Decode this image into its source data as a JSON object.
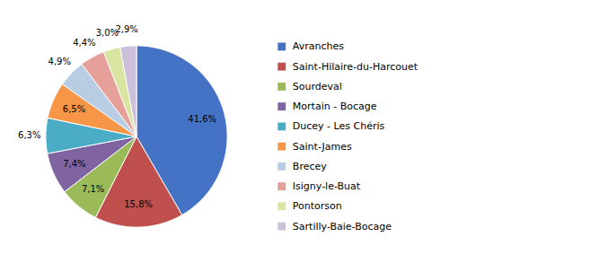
{
  "chart_data": {
    "type": "pie",
    "categories": [
      "Avranches",
      "Saint-Hilaire-du-Harcouet",
      "Sourdeval",
      "Mortain - Bocage",
      "Ducey - Les Chéris",
      "Saint-James",
      "Brecey",
      "Isigny-le-Buat",
      "Pontorson",
      "Sartilly-Baie-Bocage"
    ],
    "values": [
      41.6,
      15.8,
      7.1,
      7.4,
      6.3,
      6.5,
      4.9,
      4.4,
      3.0,
      2.9
    ],
    "value_labels": [
      "41,6%",
      "15,8%",
      "7,1%",
      "7,4%",
      "6,3%",
      "6,5%",
      "4,9%",
      "4,4%",
      "3,0%",
      "2,9%"
    ],
    "colors": [
      "#4472C4",
      "#C0504D",
      "#9BBB59",
      "#8064A2",
      "#4BACC6",
      "#F79646",
      "#B8CCE4",
      "#E6A09A",
      "#D8E4A0",
      "#CCC0DA"
    ],
    "data_labels": true,
    "legend": "right"
  }
}
